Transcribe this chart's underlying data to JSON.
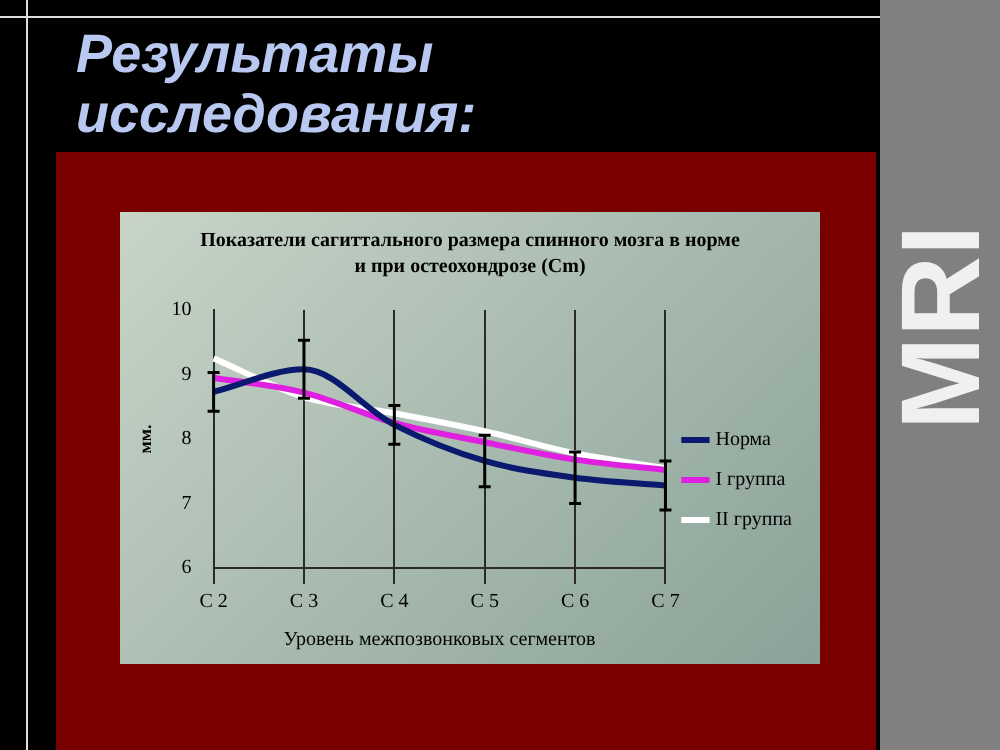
{
  "chart_data": {
    "type": "line",
    "title": "Результаты исследования:",
    "subtitle": "Показатели сагиттального размера спинного мозга в норме и при остеохондрозе (Cm)",
    "xlabel": "Уровень межпозвонковых сегментов",
    "ylabel": "мм.",
    "annotations": [
      "MRI"
    ],
    "categories": [
      "C 2",
      "C 3",
      "C 4",
      "C 5",
      "C 6",
      "C 7"
    ],
    "series": [
      {
        "name": "Норма",
        "color": "#0a1a6e",
        "values": [
          8.73,
          9.08,
          8.22,
          7.66,
          7.4,
          7.28
        ],
        "errors": [
          0.3,
          0.45,
          0.3,
          0.4,
          0.4,
          0.38
        ]
      },
      {
        "name": "I группа",
        "color": "#e020e0",
        "values": [
          8.95,
          8.72,
          8.25,
          7.95,
          7.68,
          7.52
        ]
      },
      {
        "name": "II группа",
        "color": "#ffffff",
        "values": [
          9.25,
          8.65,
          8.4,
          8.12,
          7.78,
          7.55
        ]
      }
    ],
    "ylim": [
      6,
      10
    ],
    "yticks": [
      6,
      7,
      8,
      9,
      10
    ],
    "grid": "x",
    "legend": "right",
    "marker": "none",
    "line_style": "solid"
  }
}
